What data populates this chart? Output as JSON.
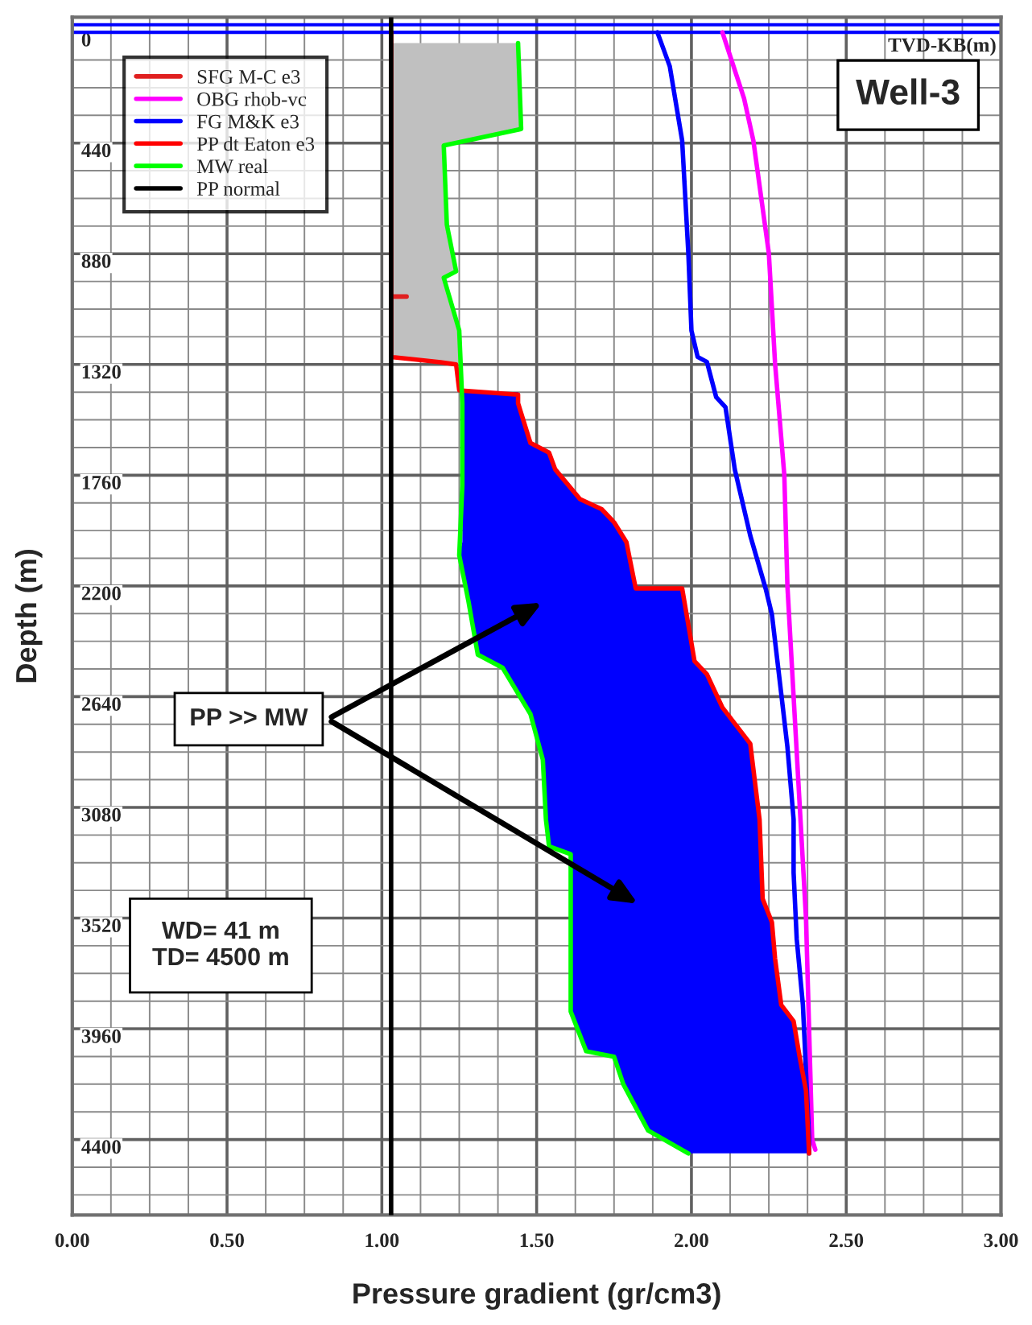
{
  "chart_data": {
    "type": "line",
    "xlabel": "Pressure gradient (gr/cm3)",
    "ylabel": "Depth (m)",
    "xlim": [
      0,
      3
    ],
    "ylim": [
      4700,
      -60
    ],
    "xticks": [
      {
        "value": 0,
        "label": "0.00"
      },
      {
        "value": 0.5,
        "label": "0.50"
      },
      {
        "value": 1,
        "label": "1.00"
      },
      {
        "value": 1.5,
        "label": "1.50"
      },
      {
        "value": 2,
        "label": "2.00"
      },
      {
        "value": 2.5,
        "label": "2.50"
      },
      {
        "value": 3,
        "label": "3.00"
      }
    ],
    "yticks": [
      0,
      440,
      880,
      1320,
      1760,
      2200,
      2640,
      3080,
      3520,
      3960,
      4400
    ],
    "grid": true,
    "legend": "top left",
    "ref_lines": [
      {
        "axis": "y",
        "value": -30,
        "color": "#0000ff"
      },
      {
        "axis": "y",
        "value": 0,
        "color": "#0000ff"
      }
    ],
    "series": [
      {
        "type": "area",
        "color": "#c0c0c0",
        "x": [
          1.44,
          1.45,
          1.2,
          1.21,
          1.24,
          1.2,
          1.25,
          1.25,
          1.24,
          1.19,
          1.03,
          1.03
        ],
        "values": [
          43,
          384,
          450,
          765,
          950,
          975,
          1185,
          1320,
          1320,
          1311,
          1290,
          43
        ]
      },
      {
        "type": "area",
        "color": "#0000ff",
        "x": [
          1.26,
          1.26,
          1.25,
          1.27,
          1.28,
          1.31,
          1.39,
          1.48,
          1.52,
          1.53,
          1.54,
          1.61,
          1.61,
          1.66,
          1.75,
          1.78,
          1.86,
          1.99,
          2.38,
          2.38,
          2.37,
          2.35,
          2.33,
          2.29,
          2.27,
          2.26,
          2.23,
          2.22,
          2.19,
          2.1,
          2.05,
          2.01,
          1.97,
          1.82,
          1.79,
          1.75,
          1.71,
          1.64,
          1.56,
          1.54,
          1.48,
          1.44,
          1.44
        ],
        "values": [
          1430,
          2026,
          2078,
          2210,
          2263,
          2473,
          2525,
          2709,
          2891,
          3128,
          3235,
          3266,
          3891,
          4049,
          4071,
          4180,
          4364,
          4455,
          4455,
          4364,
          4205,
          4071,
          3930,
          3865,
          3680,
          3537,
          3443,
          3128,
          2827,
          2683,
          2551,
          2499,
          2215,
          2210,
          2026,
          1947,
          1895,
          1855,
          1737,
          1670,
          1632,
          1474,
          1430
        ]
      },
      {
        "name": "SFG M-C e3",
        "color": "#e02020",
        "x": [
          1.03,
          1.08
        ],
        "values": [
          1050,
          1050
        ]
      },
      {
        "name": "OBG rhob-vc",
        "color": "#ff00ff",
        "x": [
          2.1,
          2.17,
          2.2,
          2.25,
          2.27,
          2.3,
          2.31,
          2.33,
          2.35,
          2.37,
          2.38,
          2.39,
          2.4
        ],
        "values": [
          0,
          263,
          430,
          878,
          1314,
          1760,
          2200,
          2640,
          3080,
          3520,
          3960,
          4400,
          4440
        ]
      },
      {
        "name": "FG M&K e3",
        "color": "#0000ff",
        "x": [
          1.89,
          1.93,
          1.97,
          1.99,
          2.0,
          2.02,
          2.05,
          2.08,
          2.11,
          2.14,
          2.19,
          2.24,
          2.26,
          2.29,
          2.31,
          2.33,
          2.33,
          2.34,
          2.36,
          2.37,
          2.38,
          2.38
        ],
        "values": [
          0,
          135,
          430,
          878,
          1185,
          1290,
          1310,
          1450,
          1490,
          1737,
          2000,
          2212,
          2314,
          2628,
          2840,
          3128,
          3340,
          3602,
          3865,
          4128,
          4391,
          4455
        ]
      },
      {
        "name": "PP dt Eaton e3",
        "color": "#ff0000",
        "x": [
          1.03,
          1.03,
          1.19,
          1.24,
          1.25,
          1.44,
          1.44,
          1.48,
          1.54,
          1.56,
          1.64,
          1.71,
          1.75,
          1.79,
          1.82,
          1.97,
          2.01,
          2.05,
          2.1,
          2.19,
          2.22,
          2.23,
          2.26,
          2.27,
          2.29,
          2.33,
          2.35,
          2.37,
          2.38
        ],
        "values": [
          0,
          1290,
          1311,
          1320,
          1423,
          1440,
          1474,
          1632,
          1670,
          1737,
          1855,
          1895,
          1947,
          2026,
          2210,
          2210,
          2499,
          2551,
          2683,
          2827,
          3128,
          3443,
          3537,
          3680,
          3865,
          3930,
          4075,
          4205,
          4455
        ]
      },
      {
        "name": "MW real",
        "color": "#00ff00",
        "x": [
          1.44,
          1.45,
          1.2,
          1.21,
          1.24,
          1.2,
          1.25,
          1.26,
          1.26,
          1.25,
          1.28,
          1.31,
          1.39,
          1.48,
          1.52,
          1.53,
          1.54,
          1.61,
          1.61,
          1.66,
          1.75,
          1.78,
          1.86,
          1.99
        ],
        "values": [
          43,
          384,
          450,
          765,
          950,
          975,
          1185,
          1474,
          1800,
          2078,
          2263,
          2473,
          2525,
          2709,
          2891,
          3128,
          3235,
          3266,
          3891,
          4049,
          4071,
          4180,
          4364,
          4455
        ]
      },
      {
        "name": "PP normal",
        "color": "#000000",
        "x": [
          1.03,
          1.03
        ],
        "values": [
          -60,
          4700
        ]
      }
    ],
    "annotations": [
      "TVD-KB(m)",
      "Well-3",
      "PP >> MW",
      "WD= 41 m\nTD= 4500 m"
    ]
  }
}
